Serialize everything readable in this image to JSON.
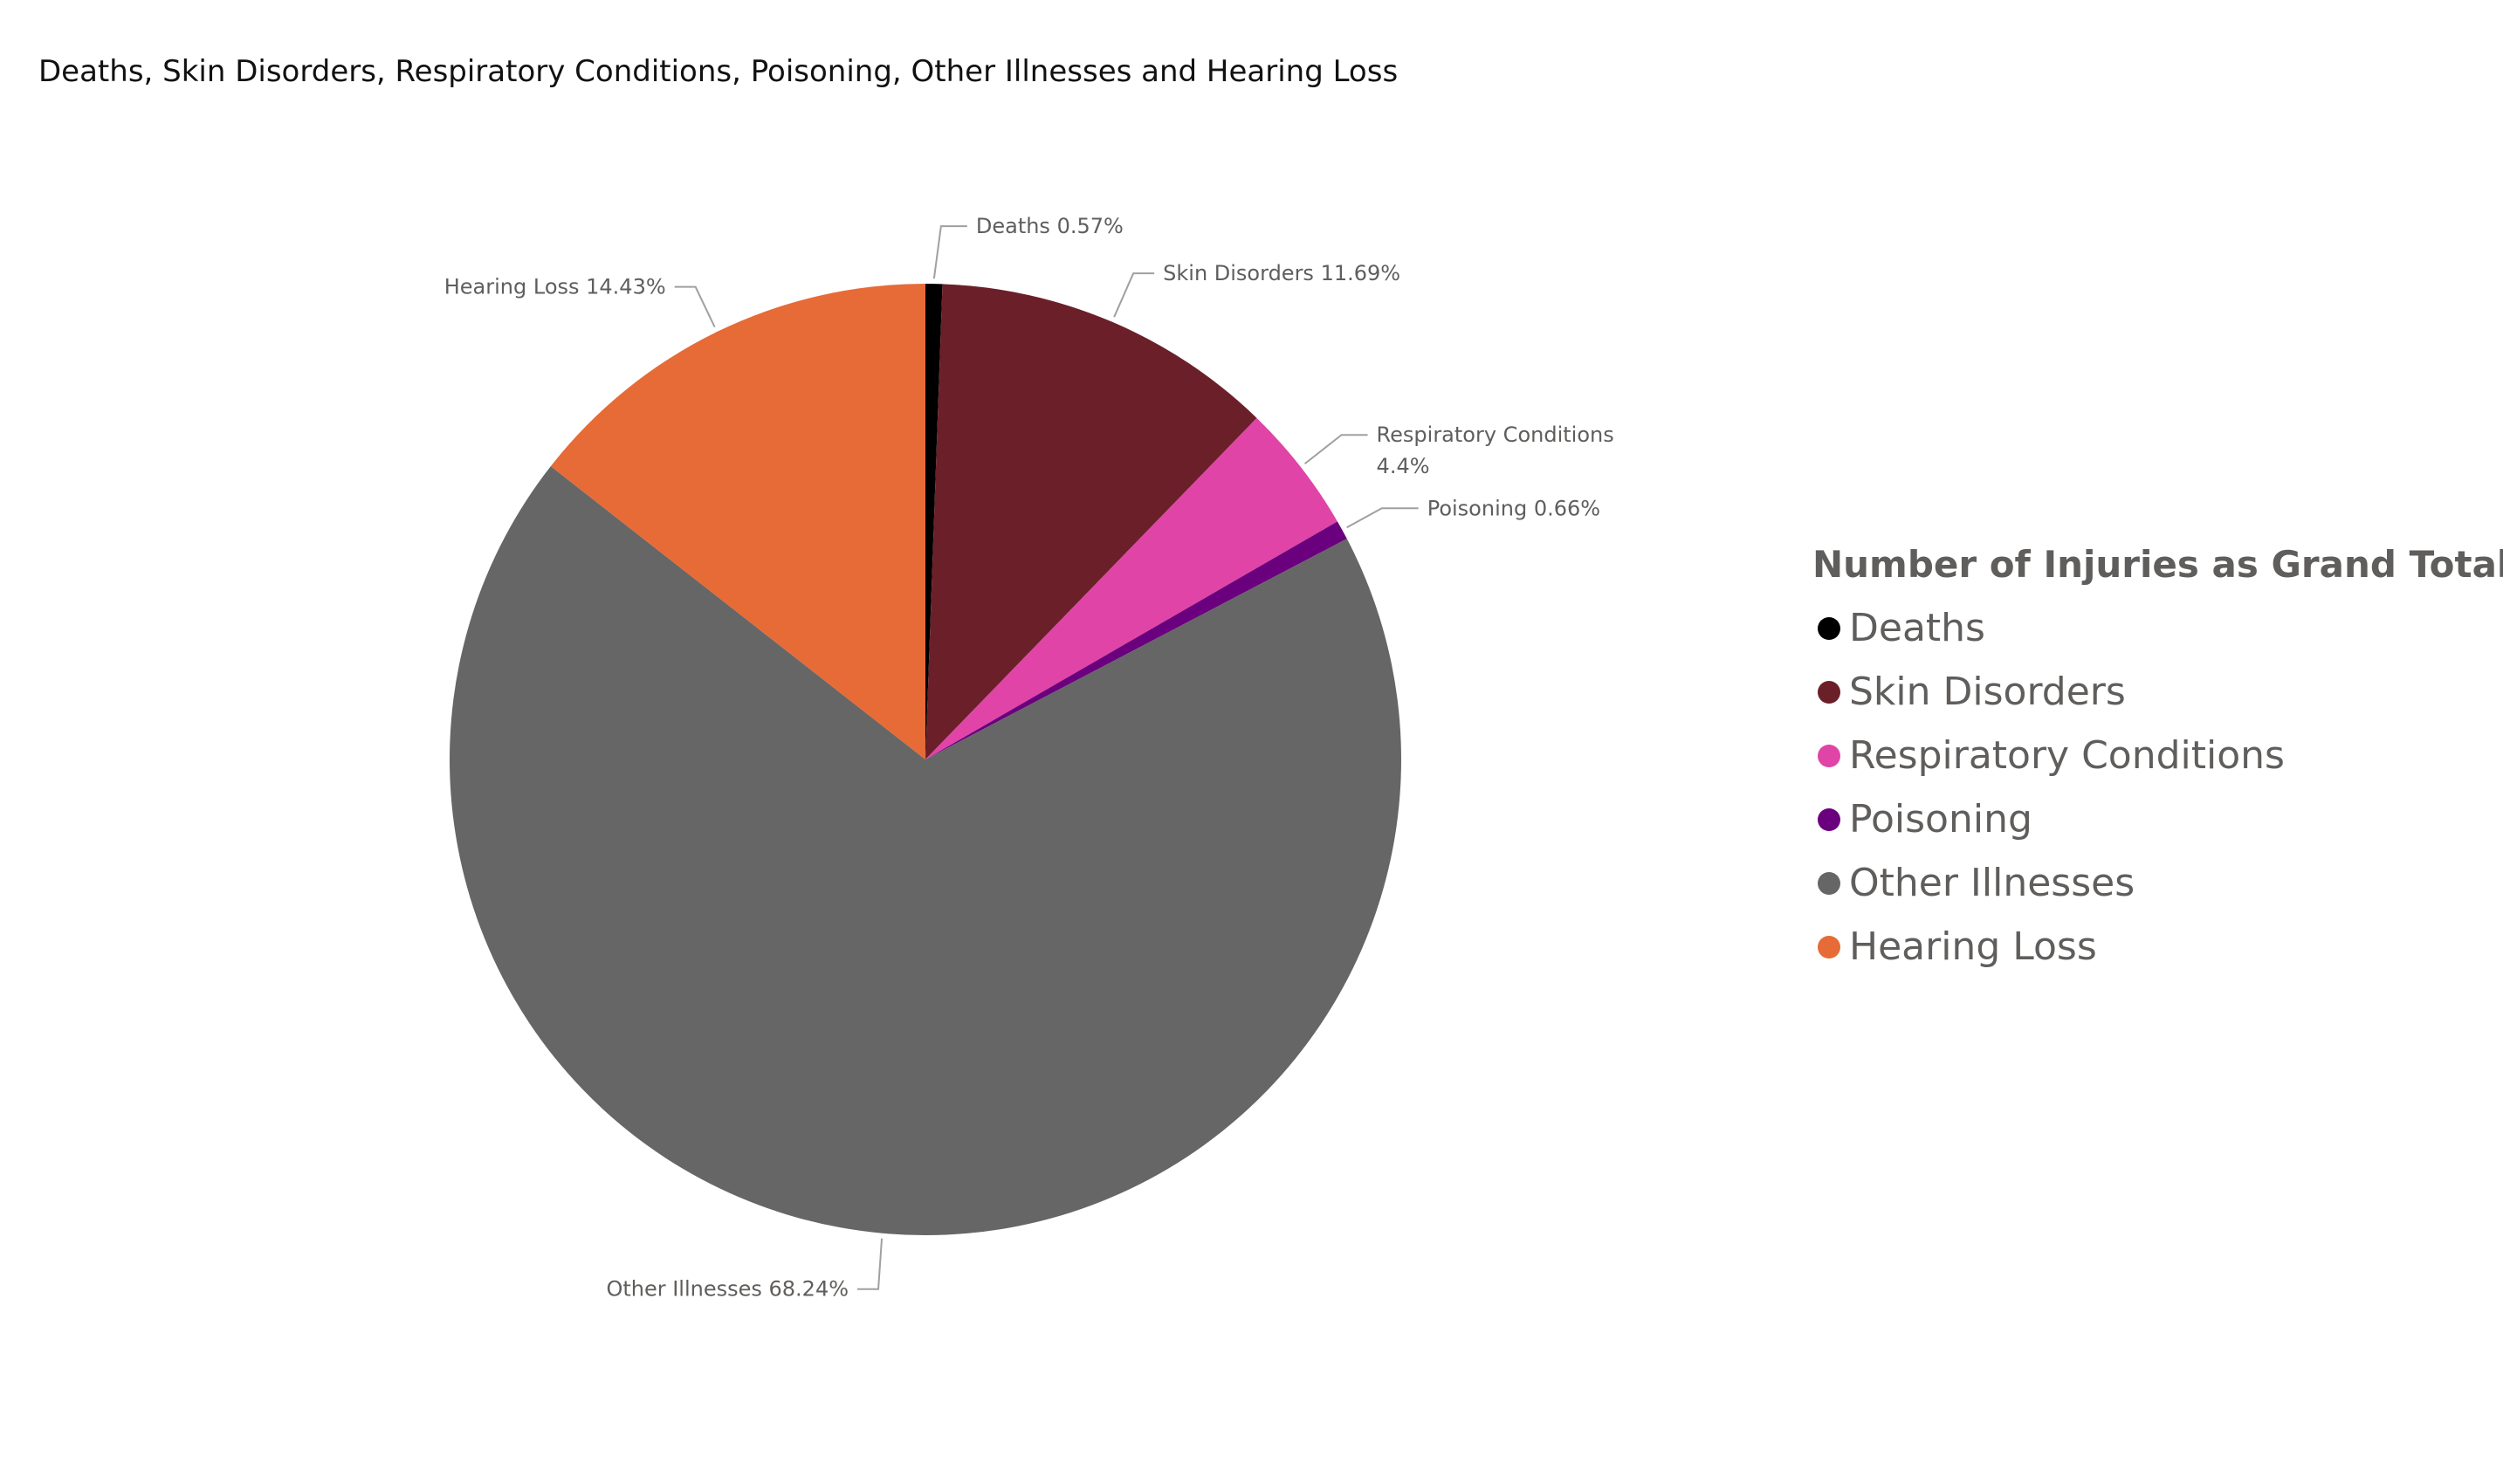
{
  "chart_data": {
    "type": "pie",
    "title": "Deaths, Skin Disorders, Respiratory Conditions, Poisoning, Other Illnesses and Hearing Loss",
    "legend_title": "Number of Injuries as Grand Total",
    "legend_position": "right",
    "categories": [
      "Deaths",
      "Skin Disorders",
      "Respiratory Conditions",
      "Poisoning",
      "Other Illnesses",
      "Hearing Loss"
    ],
    "values": [
      0.57,
      11.69,
      4.4,
      0.66,
      68.24,
      14.43
    ],
    "data_labels": [
      [
        "Deaths 0.57%"
      ],
      [
        "Skin Disorders 11.69%"
      ],
      [
        "Respiratory Conditions",
        "4.4%"
      ],
      [
        "Poisoning 0.66%"
      ],
      [
        "Other Illnesses 68.24%"
      ],
      [
        "Hearing Loss 14.43%"
      ]
    ],
    "colors": [
      "#000000",
      "#6b2029",
      "#e044a7",
      "#6a007e",
      "#666666",
      "#e66b37"
    ]
  }
}
